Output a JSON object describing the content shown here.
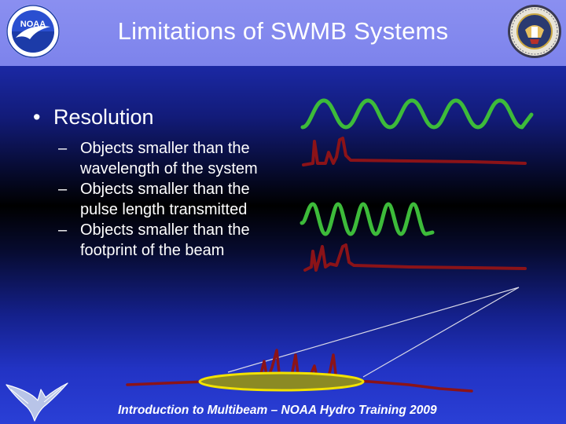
{
  "slide": {
    "title": "Limitations of SWMB Systems",
    "bullet": "Resolution",
    "bullet_marker": "•",
    "sub_marker": "–",
    "sub_items": [
      "Objects smaller than the wavelength of the system",
      "Objects smaller than the pulse length transmitted",
      "Objects smaller than the footprint of the beam"
    ],
    "footer": "Introduction to Multibeam – NOAA Hydro Training 2009"
  },
  "logos": {
    "left": {
      "icon": "noaa-logo",
      "text": "NOAA"
    },
    "right": {
      "icon": "naval-seal"
    }
  },
  "colors": {
    "wave_green": "#3dbb3a",
    "pulse_red": "#8b1318",
    "footprint_fill": "#8b8a24",
    "footprint_outline": "#f2e200",
    "title_bar": "#8a8ff0"
  }
}
